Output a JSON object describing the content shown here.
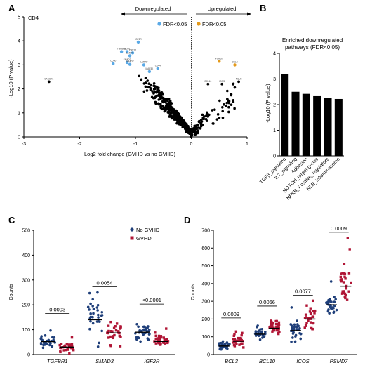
{
  "colors": {
    "black": "#000000",
    "blue": "#5aa9e6",
    "orange": "#e49a1c",
    "no_gvhd": "#1f3f7a",
    "gvhd": "#b01535"
  },
  "panels": {
    "A": {
      "letter": "A",
      "subset_label": "CD4",
      "downregulated": "Downregulated",
      "upregulated": "Upregulated",
      "legend_down": "FDR<0.05",
      "legend_up": "FDR<0.05",
      "xlabel": "Log2 fold change (GVHD vs no GVHD)",
      "ylabel": "-Log10 (P value)",
      "xticks": [
        "-3",
        "-2",
        "-1",
        "0",
        "1"
      ],
      "yticks": [
        "0",
        "1",
        "2",
        "3",
        "4",
        "5"
      ]
    },
    "B": {
      "letter": "B",
      "title_line1": "Enriched downregulated",
      "title_line2": "pathways (FDR<0.05)",
      "ylabel": "-Log10 (P value)",
      "yticks": [
        "0",
        "1",
        "2",
        "3",
        "4"
      ]
    },
    "C": {
      "letter": "C",
      "ylabel": "Counts",
      "yticks": [
        "0",
        "100",
        "200",
        "300",
        "400",
        "500"
      ],
      "legend_no_gvhd": "No GVHD",
      "legend_gvhd": "GVHD"
    },
    "D": {
      "letter": "D",
      "ylabel": "Counts",
      "yticks": [
        "0",
        "100",
        "200",
        "300",
        "400",
        "500",
        "600",
        "700"
      ]
    }
  },
  "chart_data": [
    {
      "panel": "A",
      "type": "scatter",
      "xlabel": "Log2 fold change (GVHD vs no GVHD)",
      "ylabel": "-Log10 (P value)",
      "xlim": [
        -3,
        1
      ],
      "ylim": [
        0,
        5
      ],
      "highlighted_points": [
        {
          "label": "IGF2R",
          "x": -0.95,
          "y": 3.95,
          "group": "down"
        },
        {
          "label": "TGFBR1",
          "x": -1.25,
          "y": 3.55,
          "group": "down"
        },
        {
          "label": "BCO1",
          "x": -1.15,
          "y": 3.55,
          "group": "down"
        },
        {
          "label": "CRK20",
          "x": -1.05,
          "y": 3.5,
          "group": "down"
        },
        {
          "label": "LAMP1",
          "x": -1.1,
          "y": 3.38,
          "group": "down"
        },
        {
          "label": "CD80",
          "x": -1.4,
          "y": 3.05,
          "group": "down"
        },
        {
          "label": "SMAD3",
          "x": -1.15,
          "y": 3.1,
          "group": "down"
        },
        {
          "label": "SMAD2",
          "x": -1.1,
          "y": 3.02,
          "group": "down"
        },
        {
          "label": "IL1RAP",
          "x": -0.85,
          "y": 3.0,
          "group": "down"
        },
        {
          "label": "CD44",
          "x": -0.6,
          "y": 2.85,
          "group": "down"
        },
        {
          "label": "MAP3K",
          "x": -0.75,
          "y": 2.72,
          "group": "down"
        },
        {
          "label": "PSMD7",
          "x": 0.5,
          "y": 3.15,
          "group": "up"
        },
        {
          "label": "BCL3",
          "x": 0.78,
          "y": 3.0,
          "group": "up"
        }
      ],
      "other_labeled_points": [
        {
          "label": "CASCR1",
          "x": -2.55,
          "y": 2.3
        },
        {
          "label": "ICOS",
          "x": 0.55,
          "y": 2.2
        },
        {
          "label": "BCL10",
          "x": 0.3,
          "y": 2.2
        },
        {
          "label": "NCLR",
          "x": 0.85,
          "y": 2.3
        }
      ]
    },
    {
      "panel": "B",
      "type": "bar",
      "title": "Enriched downregulated pathways (FDR<0.05)",
      "ylabel": "-Log10 (P value)",
      "ylim": [
        0,
        4
      ],
      "categories": [
        "TGFβ_signaling",
        "IL7_signaling",
        "Adhesion",
        "NOTCH_target genes",
        "NFKB_Positive_regulators",
        "NLR_inflammasome"
      ],
      "values": [
        3.18,
        2.5,
        2.42,
        2.33,
        2.25,
        2.22
      ]
    },
    {
      "panel": "C",
      "type": "scatter",
      "ylabel": "Counts",
      "ylim": [
        0,
        500
      ],
      "categories": [
        "TGFBR1",
        "SMAD3",
        "IGF2R"
      ],
      "series": [
        {
          "name": "No GVHD",
          "medians": [
            52,
            140,
            90
          ]
        },
        {
          "name": "GVHD",
          "medians": [
            30,
            87,
            53
          ]
        }
      ],
      "p_values": [
        "0.0003",
        "0.0054",
        "<0.0001"
      ]
    },
    {
      "panel": "D",
      "type": "scatter",
      "ylabel": "Counts",
      "ylim": [
        0,
        700
      ],
      "categories": [
        "BCL3",
        "BCL10",
        "ICOS",
        "PSMD7"
      ],
      "series": [
        {
          "name": "No GVHD",
          "medians": [
            48,
            115,
            135,
            280
          ]
        },
        {
          "name": "GVHD",
          "medians": [
            75,
            148,
            200,
            385
          ]
        }
      ],
      "p_values": [
        "0.0009",
        "0.0066",
        "0.0077",
        "0.0009"
      ]
    }
  ]
}
